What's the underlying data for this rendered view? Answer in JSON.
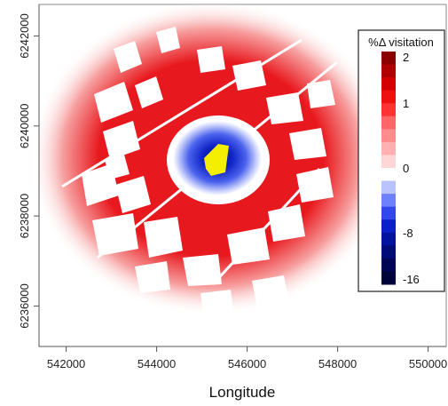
{
  "chart_data": {
    "type": "heatmap",
    "title": "",
    "xlabel": "Longitude",
    "ylabel": "",
    "xlim": [
      541400,
      550400
    ],
    "ylim": [
      6235100,
      6242700
    ],
    "x_ticks": [
      542000,
      544000,
      546000,
      548000,
      550000
    ],
    "x_tick_labels": [
      "542000",
      "544000",
      "546000",
      "548000",
      "550000"
    ],
    "y_ticks": [
      6236000,
      6238000,
      6240000,
      6242000
    ],
    "y_tick_labels": [
      "6236000",
      "6238000",
      "6240000",
      "6242000"
    ],
    "center": [
      545400,
      6239200
    ],
    "legend": {
      "title": "%Δ visitation",
      "placement": "right",
      "tick_labels": [
        "2",
        "1",
        "0",
        "-8",
        "-16"
      ],
      "bins": [
        {
          "from": 1.8,
          "to": 2.0,
          "color": "#8b0000"
        },
        {
          "from": 1.5,
          "to": 1.8,
          "color": "#b00000"
        },
        {
          "from": 1.2,
          "to": 1.5,
          "color": "#d40000"
        },
        {
          "from": 1.0,
          "to": 1.2,
          "color": "#ee1111"
        },
        {
          "from": 0.8,
          "to": 1.0,
          "color": "#ff3333"
        },
        {
          "from": 0.6,
          "to": 0.8,
          "color": "#ff6666"
        },
        {
          "from": 0.4,
          "to": 0.6,
          "color": "#ff8c8c"
        },
        {
          "from": 0.2,
          "to": 0.4,
          "color": "#ffb0b0"
        },
        {
          "from": 0.0,
          "to": 0.2,
          "color": "#ffd6d6"
        },
        {
          "from": -0.5,
          "to": 0.0,
          "color": "#ffffff"
        },
        {
          "from": -2,
          "to": -0.5,
          "color": "#b9c3ff"
        },
        {
          "from": -4,
          "to": -2,
          "color": "#6f80ff"
        },
        {
          "from": -6,
          "to": -4,
          "color": "#3347ee"
        },
        {
          "from": -8,
          "to": -6,
          "color": "#0a1fcc"
        },
        {
          "from": -10,
          "to": -8,
          "color": "#03129f"
        },
        {
          "from": -12,
          "to": -10,
          "color": "#010b78"
        },
        {
          "from": -14,
          "to": -12,
          "color": "#000654"
        },
        {
          "from": -16,
          "to": -14,
          "color": "#00033a"
        }
      ]
    },
    "colors": {
      "positive": "#e8191e",
      "negative": "#1a2fd6",
      "zero": "#ffffff",
      "site": "#f4ee00"
    }
  }
}
